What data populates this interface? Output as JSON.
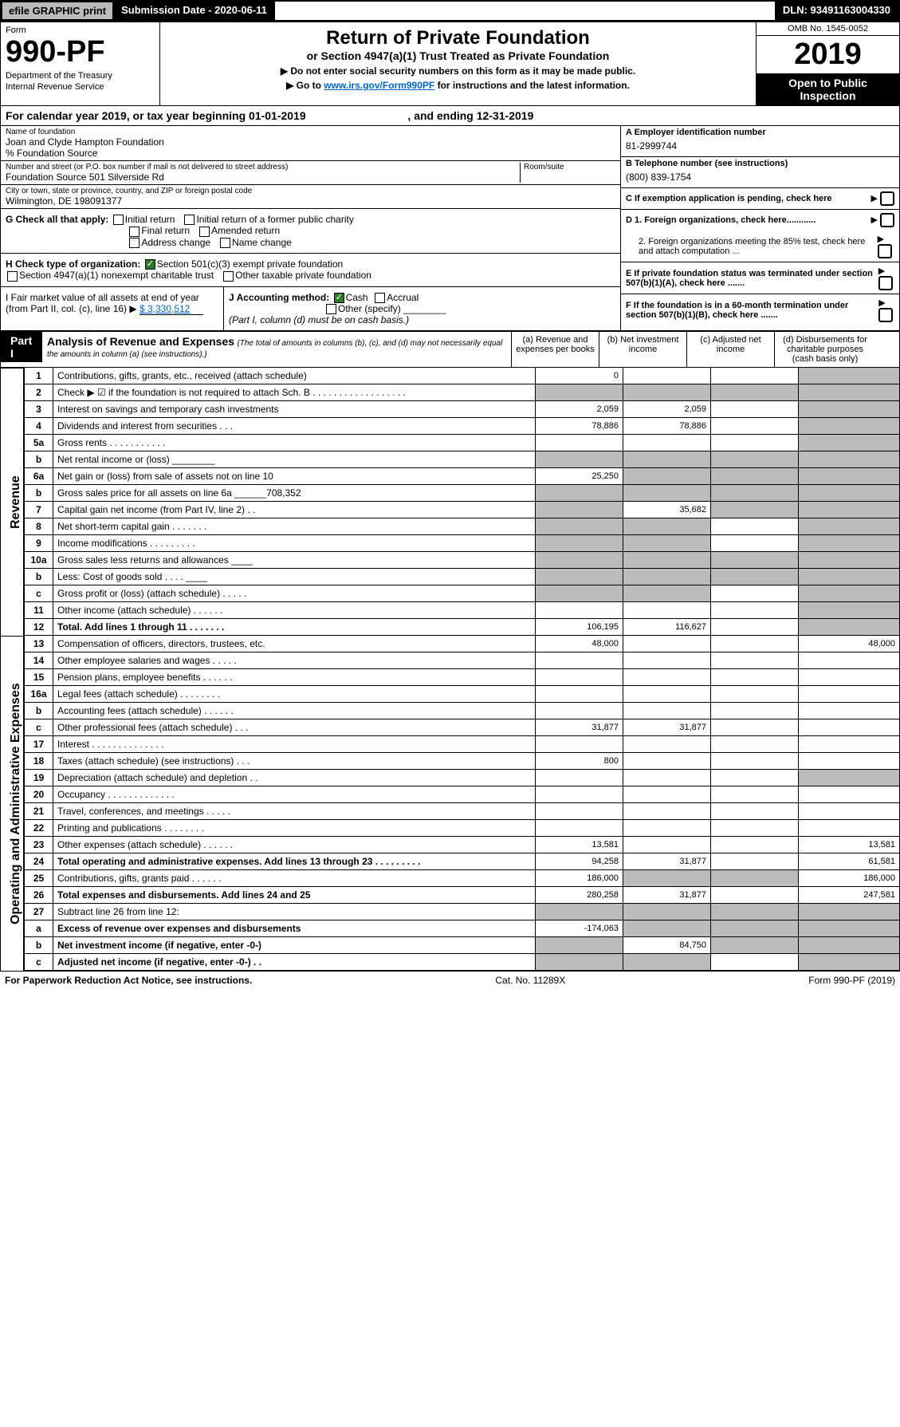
{
  "topbar": {
    "efile": "efile GRAPHIC print",
    "submission": "Submission Date - 2020-06-11",
    "dln": "DLN: 93491163004330"
  },
  "header": {
    "form_label": "Form",
    "form_number": "990-PF",
    "dept1": "Department of the Treasury",
    "dept2": "Internal Revenue Service",
    "title": "Return of Private Foundation",
    "subtitle": "or Section 4947(a)(1) Trust Treated as Private Foundation",
    "note1": "▶ Do not enter social security numbers on this form as it may be made public.",
    "note2_pre": "▶ Go to ",
    "note2_link": "www.irs.gov/Form990PF",
    "note2_post": " for instructions and the latest information.",
    "omb": "OMB No. 1545-0052",
    "year": "2019",
    "open": "Open to Public Inspection"
  },
  "calyear": {
    "text_pre": "For calendar year 2019, or tax year beginning 01-01-2019",
    "text_end": ", and ending 12-31-2019"
  },
  "foundation": {
    "name_label": "Name of foundation",
    "name": "Joan and Clyde Hampton Foundation",
    "co": "% Foundation Source",
    "addr_label": "Number and street (or P.O. box number if mail is not delivered to street address)",
    "addr": "Foundation Source 501 Silverside Rd",
    "room_label": "Room/suite",
    "city_label": "City or town, state or province, country, and ZIP or foreign postal code",
    "city": "Wilmington, DE 198091377"
  },
  "right_info": {
    "a_label": "A Employer identification number",
    "a_val": "81-2999744",
    "b_label": "B Telephone number (see instructions)",
    "b_val": "(800) 839-1754",
    "c_label": "C If exemption application is pending, check here",
    "d1": "D 1. Foreign organizations, check here............",
    "d2": "2. Foreign organizations meeting the 85% test, check here and attach computation ...",
    "e": "E If private foundation status was terminated under section 507(b)(1)(A), check here .......",
    "f": "F If the foundation is in a 60-month termination under section 507(b)(1)(B), check here ......."
  },
  "g_section": {
    "label": "G Check all that apply:",
    "opts": [
      "Initial return",
      "Initial return of a former public charity",
      "Final return",
      "Amended return",
      "Address change",
      "Name change"
    ]
  },
  "h_section": {
    "label": "H Check type of organization:",
    "opt1": "Section 501(c)(3) exempt private foundation",
    "opt2": "Section 4947(a)(1) nonexempt charitable trust",
    "opt3": "Other taxable private foundation"
  },
  "i_section": {
    "label": "I Fair market value of all assets at end of year (from Part II, col. (c), line 16) ▶",
    "value": "$ 3,330,512"
  },
  "j_section": {
    "label": "J Accounting method:",
    "cash": "Cash",
    "accrual": "Accrual",
    "other": "Other (specify)",
    "note": "(Part I, column (d) must be on cash basis.)"
  },
  "part1": {
    "label": "Part I",
    "title": "Analysis of Revenue and Expenses",
    "subtitle": "(The total of amounts in columns (b), (c), and (d) may not necessarily equal the amounts in column (a) (see instructions).)",
    "cols": {
      "a": "(a) Revenue and expenses per books",
      "b": "(b) Net investment income",
      "c": "(c) Adjusted net income",
      "d": "(d) Disbursements for charitable purposes (cash basis only)"
    }
  },
  "side_labels": {
    "revenue": "Revenue",
    "expenses": "Operating and Administrative Expenses"
  },
  "rows": [
    {
      "n": "1",
      "desc": "Contributions, gifts, grants, etc., received (attach schedule)",
      "a": "0",
      "b": "",
      "c": "",
      "d": "",
      "dg": true
    },
    {
      "n": "2",
      "desc": "Check ▶ ☑ if the foundation is not required to attach Sch. B  . . . . . . . . . . . . . . . . . .",
      "a": "",
      "b": "",
      "c": "",
      "d": "",
      "ag": true,
      "bg": true,
      "cg": true,
      "dg": true
    },
    {
      "n": "3",
      "desc": "Interest on savings and temporary cash investments",
      "a": "2,059",
      "b": "2,059",
      "c": "",
      "d": "",
      "dg": true
    },
    {
      "n": "4",
      "desc": "Dividends and interest from securities  . . .",
      "a": "78,886",
      "b": "78,886",
      "c": "",
      "d": "",
      "dg": true
    },
    {
      "n": "5a",
      "desc": "Gross rents  . . . . . . . . . . .",
      "a": "",
      "b": "",
      "c": "",
      "d": "",
      "dg": true
    },
    {
      "n": "b",
      "desc": "Net rental income or (loss) ________",
      "a": "",
      "b": "",
      "c": "",
      "d": "",
      "ag": true,
      "bg": true,
      "cg": true,
      "dg": true
    },
    {
      "n": "6a",
      "desc": "Net gain or (loss) from sale of assets not on line 10",
      "a": "25,250",
      "b": "",
      "c": "",
      "d": "",
      "bg": true,
      "cg": true,
      "dg": true
    },
    {
      "n": "b",
      "desc": "Gross sales price for all assets on line 6a ______708,352",
      "a": "",
      "b": "",
      "c": "",
      "d": "",
      "ag": true,
      "bg": true,
      "cg": true,
      "dg": true
    },
    {
      "n": "7",
      "desc": "Capital gain net income (from Part IV, line 2)  . .",
      "a": "",
      "b": "35,682",
      "c": "",
      "d": "",
      "ag": true,
      "cg": true,
      "dg": true
    },
    {
      "n": "8",
      "desc": "Net short-term capital gain  . . . . . . .",
      "a": "",
      "b": "",
      "c": "",
      "d": "",
      "ag": true,
      "bg": true,
      "dg": true
    },
    {
      "n": "9",
      "desc": "Income modifications  . . . . . . . . .",
      "a": "",
      "b": "",
      "c": "",
      "d": "",
      "ag": true,
      "bg": true,
      "dg": true
    },
    {
      "n": "10a",
      "desc": "Gross sales less returns and allowances ____",
      "a": "",
      "b": "",
      "c": "",
      "d": "",
      "ag": true,
      "bg": true,
      "cg": true,
      "dg": true
    },
    {
      "n": "b",
      "desc": "Less: Cost of goods sold  . . . . ____",
      "a": "",
      "b": "",
      "c": "",
      "d": "",
      "ag": true,
      "bg": true,
      "cg": true,
      "dg": true
    },
    {
      "n": "c",
      "desc": "Gross profit or (loss) (attach schedule)  . . . . .",
      "a": "",
      "b": "",
      "c": "",
      "d": "",
      "ag": true,
      "bg": true,
      "dg": true
    },
    {
      "n": "11",
      "desc": "Other income (attach schedule)  . . . . . .",
      "a": "",
      "b": "",
      "c": "",
      "d": "",
      "dg": true
    },
    {
      "n": "12",
      "desc": "Total. Add lines 1 through 11  . . . . . . .",
      "a": "106,195",
      "b": "116,627",
      "c": "",
      "d": "",
      "dg": true,
      "bold": true
    }
  ],
  "exp_rows": [
    {
      "n": "13",
      "desc": "Compensation of officers, directors, trustees, etc.",
      "a": "48,000",
      "b": "",
      "c": "",
      "d": "48,000"
    },
    {
      "n": "14",
      "desc": "Other employee salaries and wages  . . . . .",
      "a": "",
      "b": "",
      "c": "",
      "d": ""
    },
    {
      "n": "15",
      "desc": "Pension plans, employee benefits  . . . . . .",
      "a": "",
      "b": "",
      "c": "",
      "d": ""
    },
    {
      "n": "16a",
      "desc": "Legal fees (attach schedule)  . . . . . . . .",
      "a": "",
      "b": "",
      "c": "",
      "d": ""
    },
    {
      "n": "b",
      "desc": "Accounting fees (attach schedule)  . . . . . .",
      "a": "",
      "b": "",
      "c": "",
      "d": ""
    },
    {
      "n": "c",
      "desc": "Other professional fees (attach schedule)  . . .",
      "a": "31,877",
      "b": "31,877",
      "c": "",
      "d": ""
    },
    {
      "n": "17",
      "desc": "Interest  . . . . . . . . . . . . . .",
      "a": "",
      "b": "",
      "c": "",
      "d": ""
    },
    {
      "n": "18",
      "desc": "Taxes (attach schedule) (see instructions)  . . .",
      "a": "800",
      "b": "",
      "c": "",
      "d": ""
    },
    {
      "n": "19",
      "desc": "Depreciation (attach schedule) and depletion  . .",
      "a": "",
      "b": "",
      "c": "",
      "d": "",
      "dg": true
    },
    {
      "n": "20",
      "desc": "Occupancy  . . . . . . . . . . . . .",
      "a": "",
      "b": "",
      "c": "",
      "d": ""
    },
    {
      "n": "21",
      "desc": "Travel, conferences, and meetings  . . . . .",
      "a": "",
      "b": "",
      "c": "",
      "d": ""
    },
    {
      "n": "22",
      "desc": "Printing and publications  . . . . . . . .",
      "a": "",
      "b": "",
      "c": "",
      "d": ""
    },
    {
      "n": "23",
      "desc": "Other expenses (attach schedule)  . . . . . .",
      "a": "13,581",
      "b": "",
      "c": "",
      "d": "13,581"
    },
    {
      "n": "24",
      "desc": "Total operating and administrative expenses. Add lines 13 through 23  . . . . . . . . .",
      "a": "94,258",
      "b": "31,877",
      "c": "",
      "d": "61,581",
      "bold": true
    },
    {
      "n": "25",
      "desc": "Contributions, gifts, grants paid  . . . . . .",
      "a": "186,000",
      "b": "",
      "c": "",
      "d": "186,000",
      "bg": true,
      "cg": true
    },
    {
      "n": "26",
      "desc": "Total expenses and disbursements. Add lines 24 and 25",
      "a": "280,258",
      "b": "31,877",
      "c": "",
      "d": "247,581",
      "bold": true
    },
    {
      "n": "27",
      "desc": "Subtract line 26 from line 12:",
      "a": "",
      "b": "",
      "c": "",
      "d": "",
      "ag": true,
      "bg": true,
      "cg": true,
      "dg": true
    },
    {
      "n": "a",
      "desc": "Excess of revenue over expenses and disbursements",
      "a": "-174,063",
      "b": "",
      "c": "",
      "d": "",
      "bg": true,
      "cg": true,
      "dg": true,
      "bold": true
    },
    {
      "n": "b",
      "desc": "Net investment income (if negative, enter -0-)",
      "a": "",
      "b": "84,750",
      "c": "",
      "d": "",
      "ag": true,
      "cg": true,
      "dg": true,
      "bold": true
    },
    {
      "n": "c",
      "desc": "Adjusted net income (if negative, enter -0-)  . .",
      "a": "",
      "b": "",
      "c": "",
      "d": "",
      "ag": true,
      "bg": true,
      "dg": true,
      "bold": true
    }
  ],
  "footer": {
    "left": "For Paperwork Reduction Act Notice, see instructions.",
    "center": "Cat. No. 11289X",
    "right": "Form 990-PF (2019)"
  }
}
